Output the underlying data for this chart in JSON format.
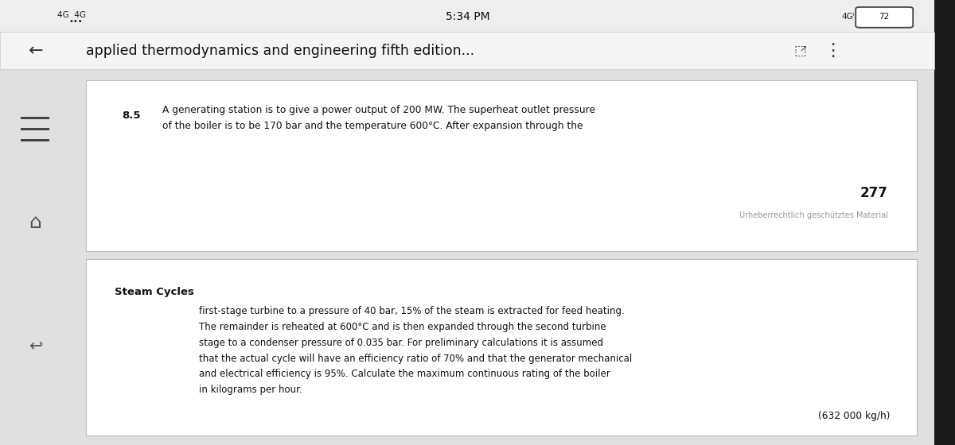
{
  "bg_color": "#e0e0e0",
  "status_bar_text": "5:34 PM",
  "nav_back": "←",
  "top_card_label": "8.5",
  "top_card_main_text": "A generating station is to give a power output of 200 MW. The superheat outlet pressure\nof the boiler is to be 170 bar and the temperature 600°C. After expansion through the",
  "page_number": "277",
  "copyright_text": "Urheberrechtlich geschütztes Material",
  "bottom_card_section_label": "Steam Cycles",
  "bottom_card_body_line1": "first-stage turbine to a pressure of 40 bar, 15% of the steam is extracted for feed heating.",
  "bottom_card_body_line2": "The remainder is reheated at 600°C and is then expanded through the second turbine",
  "bottom_card_body_line3": "stage to a condenser pressure of 0.035 bar. For preliminary calculations it is assumed",
  "bottom_card_body_line4": "that the actual cycle will have an efficiency ratio of 70% and that the generator mechanical",
  "bottom_card_body_line5": "and electrical efficiency is 95%. Calculate the maximum continuous rating of the boiler",
  "bottom_card_body_line6": "in kilograms per hour.",
  "answer_text": "(632 000 kg/h)",
  "nav_title": "applied thermodynamics and engineering fifth edition..."
}
